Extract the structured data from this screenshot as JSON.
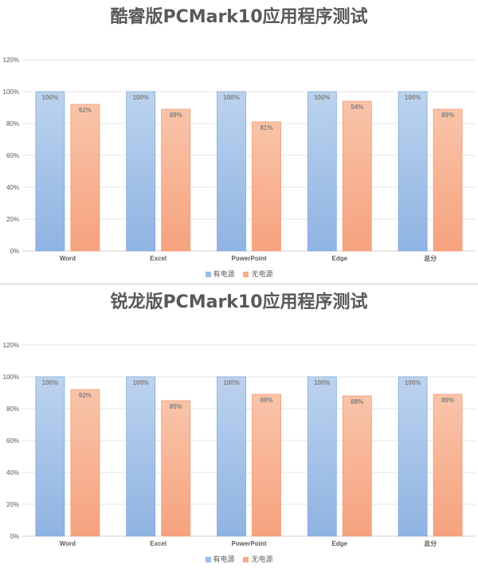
{
  "colors": {
    "series_a": "#9bbde6",
    "series_b": "#f8ac8c",
    "grid": "#e6e6e6"
  },
  "chart_data": [
    {
      "type": "bar",
      "title": "酷睿版PCMark10应用程序测试",
      "categories": [
        "Word",
        "Excel",
        "PowerPoint",
        "Edge",
        "总分"
      ],
      "yticks": [
        "0%",
        "20%",
        "40%",
        "60%",
        "80%",
        "100%",
        "120%"
      ],
      "ylim": [
        0,
        120
      ],
      "legend_position": "bottom",
      "grid": true,
      "series": [
        {
          "name": "有电源",
          "values": [
            100,
            100,
            100,
            100,
            100
          ],
          "labels": [
            "100%",
            "100%",
            "100%",
            "100%",
            "100%"
          ]
        },
        {
          "name": "无电源",
          "values": [
            92,
            89,
            81,
            94,
            89
          ],
          "labels": [
            "92%",
            "89%",
            "81%",
            "94%",
            "89%"
          ]
        }
      ]
    },
    {
      "type": "bar",
      "title": "锐龙版PCMark10应用程序测试",
      "categories": [
        "Word",
        "Excel",
        "PowerPoint",
        "Edge",
        "总分"
      ],
      "yticks": [
        "0%",
        "20%",
        "40%",
        "60%",
        "80%",
        "100%",
        "120%"
      ],
      "ylim": [
        0,
        120
      ],
      "legend_position": "bottom",
      "grid": true,
      "series": [
        {
          "name": "有电源",
          "values": [
            100,
            100,
            100,
            100,
            100
          ],
          "labels": [
            "100%",
            "100%",
            "100%",
            "100%",
            "100%"
          ]
        },
        {
          "name": "无电源",
          "values": [
            92,
            85,
            89,
            88,
            89
          ],
          "labels": [
            "92%",
            "85%",
            "89%",
            "88%",
            "89%"
          ]
        }
      ]
    }
  ]
}
